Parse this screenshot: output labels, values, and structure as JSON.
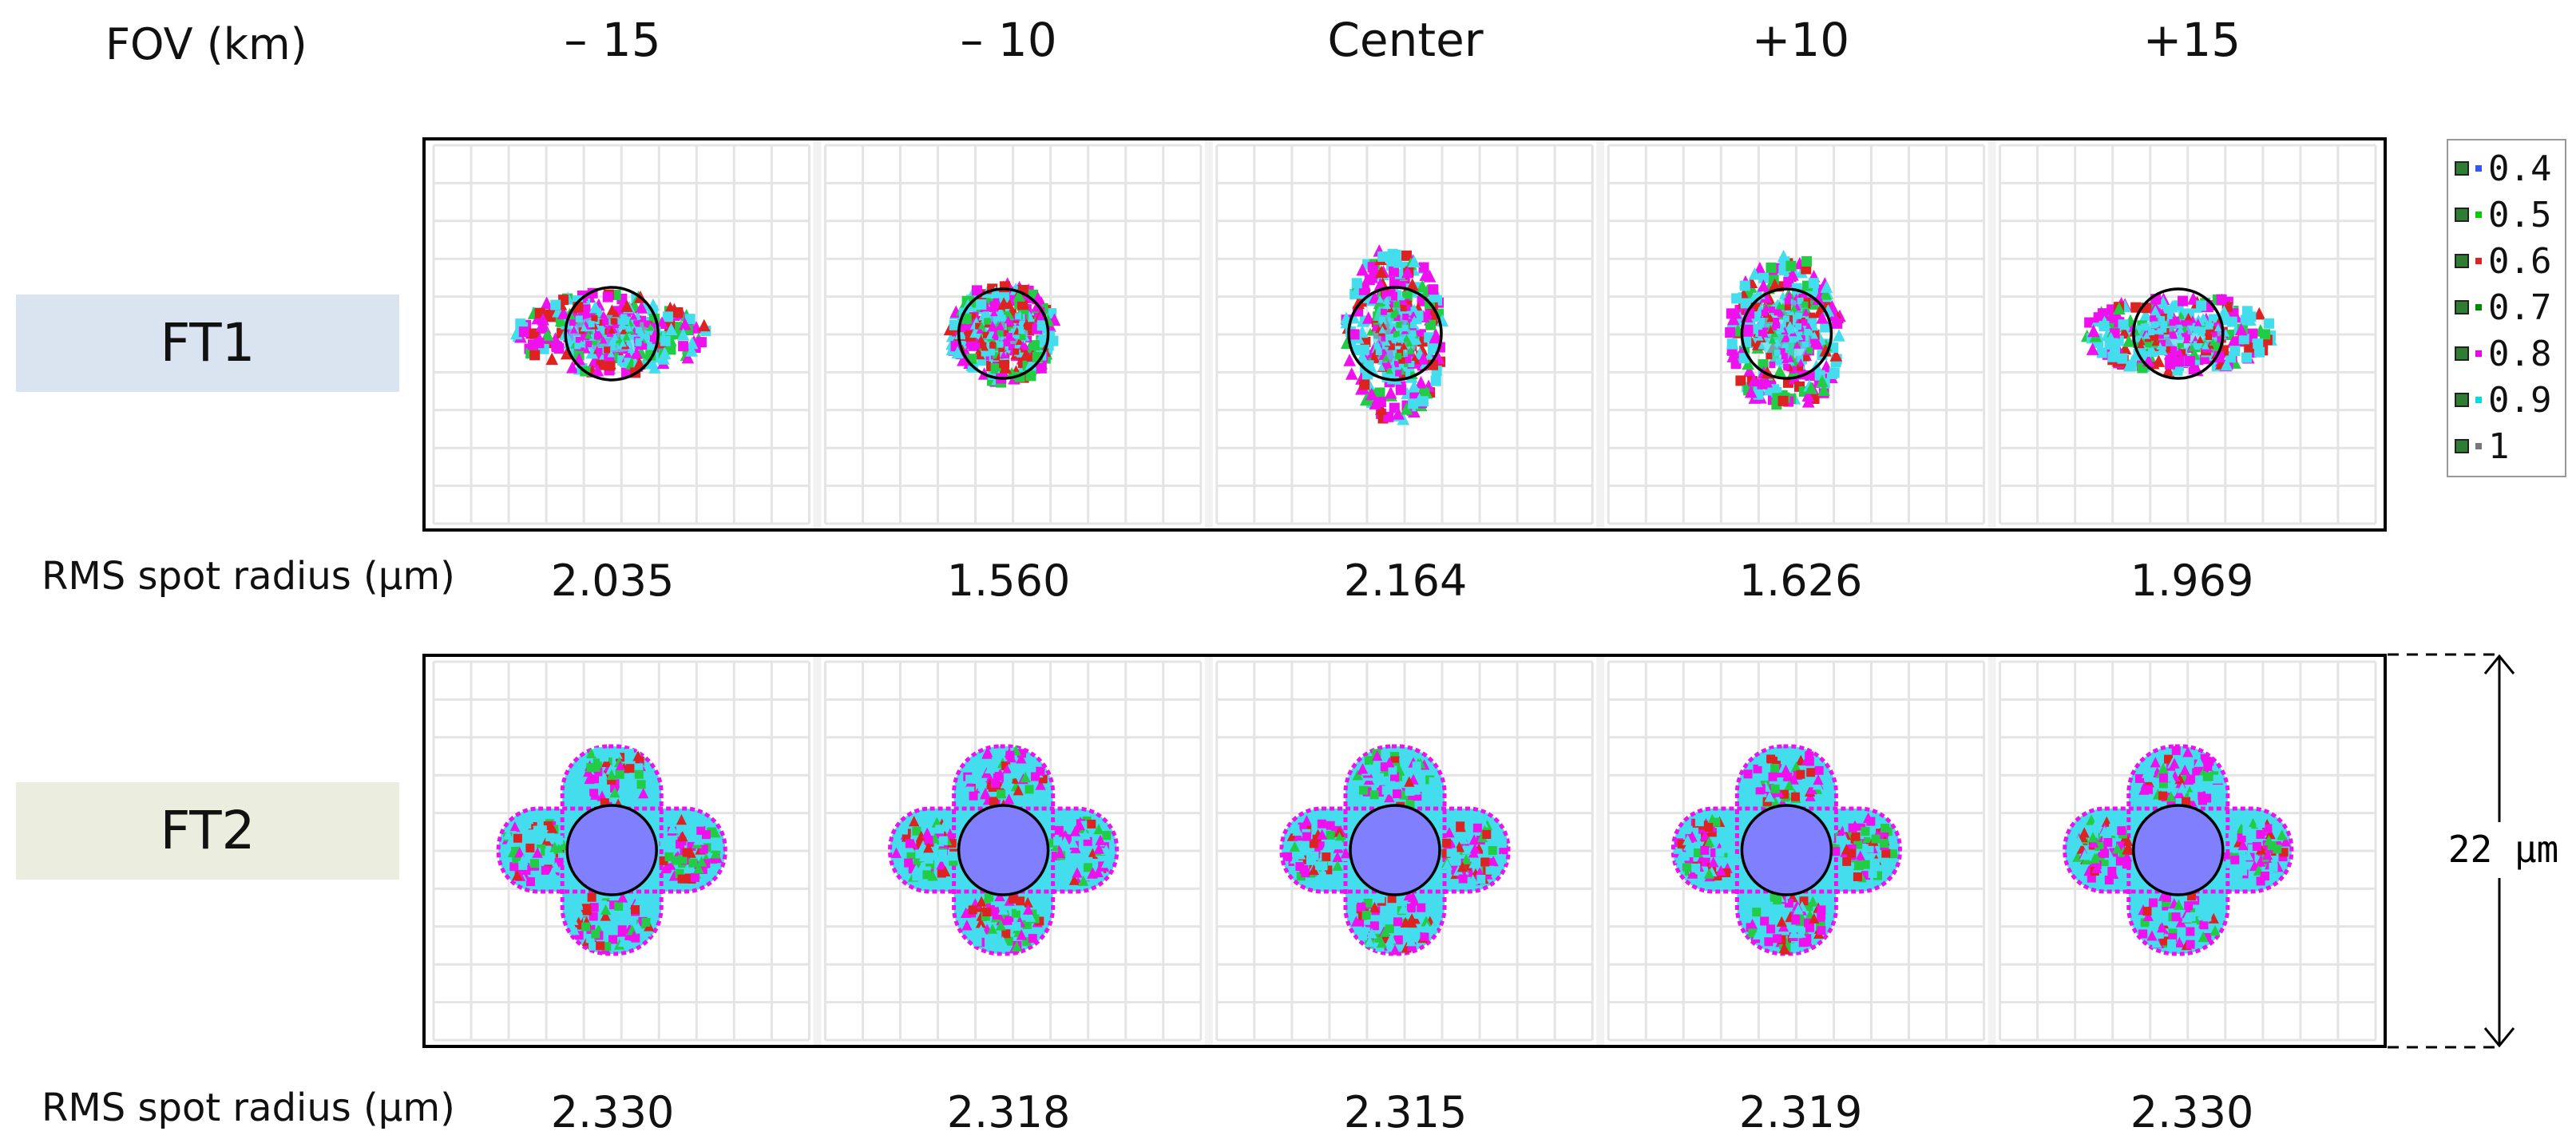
{
  "header": {
    "fov_label": "FOV (km)",
    "columns": [
      "– 15",
      "– 10",
      "Center",
      "+10",
      "+15"
    ]
  },
  "rows": [
    {
      "label": "FT1",
      "label_bg": "#dae3f0",
      "rms_label": "RMS spot radius (µm)",
      "rms_values": [
        "2.035",
        "1.560",
        "2.164",
        "1.626",
        "1.969"
      ]
    },
    {
      "label": "FT2",
      "label_bg": "#ebeddf",
      "rms_label": "RMS spot radius (µm)",
      "rms_values": [
        "2.330",
        "2.318",
        "2.315",
        "2.319",
        "2.330"
      ]
    }
  ],
  "legend": {
    "items": [
      {
        "label": "0.4",
        "color": "#3355ff"
      },
      {
        "label": "0.5",
        "color": "#00cc00"
      },
      {
        "label": "0.6",
        "color": "#dd2222"
      },
      {
        "label": "0.7",
        "color": "#008800"
      },
      {
        "label": "0.8",
        "color": "#ee00ee"
      },
      {
        "label": "0.9",
        "color": "#00dddd"
      },
      {
        "label": "1",
        "color": "#777777"
      }
    ]
  },
  "scale": {
    "label": "22 µm"
  },
  "colors": {
    "spot_magenta": "#ee11ee",
    "spot_cyan": "#44ddee",
    "spot_green": "#22cc44",
    "spot_red": "#dd2222",
    "spot_core": "#8080ff",
    "grid": "#e4e4e4"
  }
}
